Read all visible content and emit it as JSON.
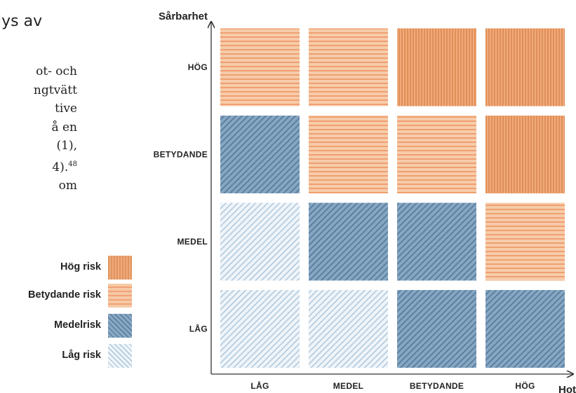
{
  "text": {
    "heading": "lys av",
    "paragraph_lines": [
      "ot- och",
      "ngtvätt",
      "tive",
      "å en",
      "(1),",
      "4).",
      "om"
    ],
    "footnote": "48"
  },
  "legend": [
    {
      "label": "Hög risk",
      "level": "high"
    },
    {
      "label": "Betydande risk",
      "level": "significant"
    },
    {
      "label": "Medelrisk",
      "level": "medium"
    },
    {
      "label": "Låg risk",
      "level": "low"
    }
  ],
  "chart_data": {
    "type": "heatmap",
    "xlabel": "Hot",
    "ylabel": "Sårbarhet",
    "x_categories": [
      "LÅG",
      "MEDEL",
      "BETYDANDE",
      "HÖG"
    ],
    "y_categories": [
      "LÅG",
      "MEDEL",
      "BETYDANDE",
      "HÖG"
    ],
    "cells": [
      [
        "low",
        "low",
        "medium",
        "medium"
      ],
      [
        "low",
        "medium",
        "medium",
        "significant"
      ],
      [
        "medium",
        "significant",
        "significant",
        "high"
      ],
      [
        "significant",
        "significant",
        "high",
        "high"
      ]
    ],
    "colors": {
      "high": "#e8965f",
      "significant": "#f3b68d",
      "medium": "#7596b5",
      "low": "#d3e1ec",
      "axis": "#333333"
    }
  }
}
